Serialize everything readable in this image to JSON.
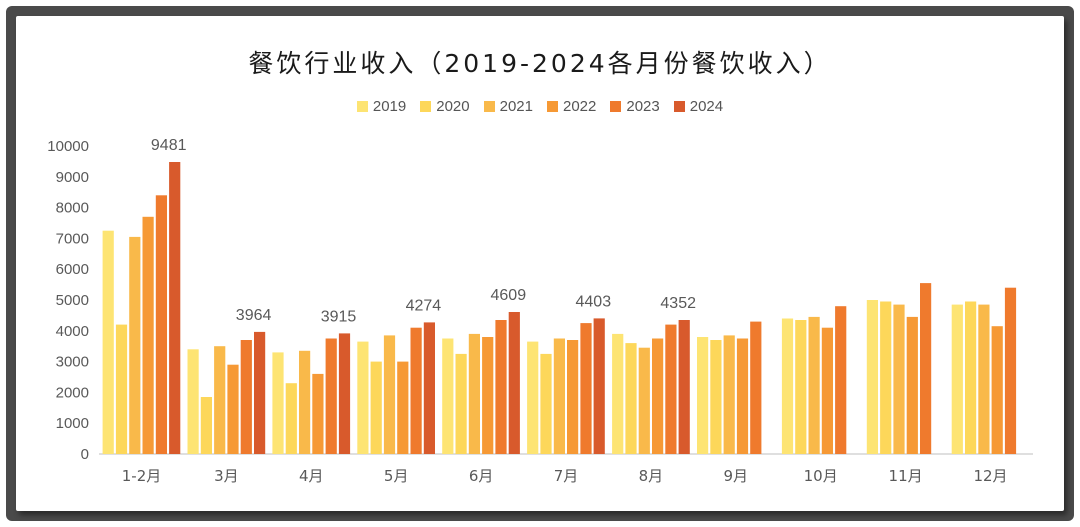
{
  "chart_data": {
    "type": "bar",
    "title": "餐饮行业收入（2019-2024各月份餐饮收入）",
    "categories": [
      "1-2月",
      "3月",
      "4月",
      "5月",
      "6月",
      "7月",
      "8月",
      "9月",
      "10月",
      "11月",
      "12月"
    ],
    "series": [
      {
        "name": "2019",
        "color": "#fde473",
        "values": [
          7250,
          3400,
          3300,
          3650,
          3750,
          3650,
          3900,
          3800,
          4400,
          5000,
          4850
        ]
      },
      {
        "name": "2020",
        "color": "#fdd75a",
        "values": [
          4200,
          1850,
          2300,
          3000,
          3250,
          3250,
          3600,
          3700,
          4350,
          4950,
          4950
        ]
      },
      {
        "name": "2021",
        "color": "#f9b94a",
        "values": [
          7050,
          3500,
          3350,
          3850,
          3900,
          3750,
          3450,
          3850,
          4450,
          4850,
          4850
        ]
      },
      {
        "name": "2022",
        "color": "#f69935",
        "values": [
          7700,
          2900,
          2600,
          3000,
          3800,
          3700,
          3750,
          3750,
          4100,
          4450,
          4150
        ]
      },
      {
        "name": "2023",
        "color": "#ef7a2d",
        "values": [
          8400,
          3700,
          3750,
          4100,
          4350,
          4250,
          4200,
          4300,
          4800,
          5550,
          5400
        ]
      },
      {
        "name": "2024",
        "color": "#d85a2c",
        "values": [
          9481,
          3964,
          3915,
          4274,
          4609,
          4403,
          4352,
          null,
          null,
          null,
          null
        ]
      }
    ],
    "data_labels": {
      "series": "2024",
      "values": [
        "9481",
        "3964",
        "3915",
        "4274",
        "4609",
        "4403",
        "4352"
      ]
    },
    "y_ticks": [
      "0",
      "1000",
      "2000",
      "3000",
      "4000",
      "5000",
      "6000",
      "7000",
      "8000",
      "9000",
      "10000"
    ],
    "ylim": [
      0,
      10000
    ],
    "xlabel": "",
    "ylabel": "",
    "grid": false,
    "legend_position": "top"
  }
}
